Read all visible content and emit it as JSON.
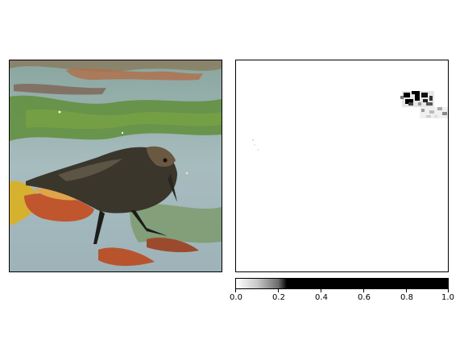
{
  "colorbar": {
    "ticks": [
      {
        "value": 0.0,
        "label": "0.0"
      },
      {
        "value": 0.2,
        "label": "0.2"
      },
      {
        "value": 0.4,
        "label": "0.4"
      },
      {
        "value": 0.6,
        "label": "0.6"
      },
      {
        "value": 0.8,
        "label": "0.8"
      },
      {
        "value": 1.0,
        "label": "1.0"
      }
    ]
  },
  "photo": {
    "subject": "bird-icon",
    "colors": {
      "water": "#9fb5b7",
      "algae": "#5f8e3a",
      "bird": "#3a362c",
      "leaf": "#b8542d"
    }
  },
  "map": {
    "background": "#ffffff",
    "foreground": "#000000"
  }
}
